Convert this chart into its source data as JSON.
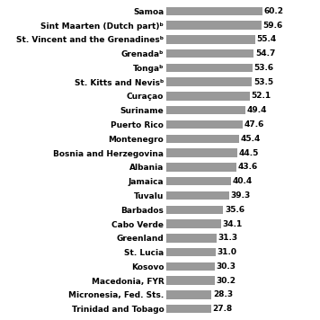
{
  "countries": [
    "Samoa",
    "Sint Maarten (Dutch part)ᵇ",
    "St. Vincent and the Grenadinesᵇ",
    "Grenadaᵇ",
    "Tongaᵇ",
    "St. Kitts and Nevisᵇ",
    "Curaçao",
    "Suriname",
    "Puerto Rico",
    "Montenegro",
    "Bosnia and Herzegovina",
    "Albania",
    "Jamaica",
    "Tuvalu",
    "Barbados",
    "Cabo Verde",
    "Greenland",
    "St. Lucia",
    "Kosovo",
    "Macedonia, FYR",
    "Micronesia, Fed. Sts.",
    "Trinidad and Tobago"
  ],
  "values": [
    60.2,
    59.6,
    55.4,
    54.7,
    53.6,
    53.5,
    52.1,
    49.4,
    47.6,
    45.4,
    44.5,
    43.6,
    40.4,
    39.3,
    35.6,
    34.1,
    31.3,
    31.0,
    30.3,
    30.2,
    28.3,
    27.8
  ],
  "bar_color": "#999999",
  "text_color": "#000000",
  "background_color": "#ffffff",
  "value_fontsize": 6.5,
  "label_fontsize": 6.5,
  "bar_height": 0.6
}
